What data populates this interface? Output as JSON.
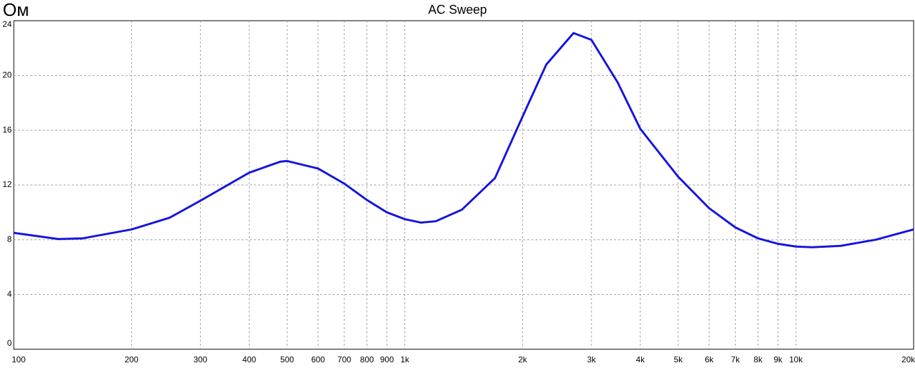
{
  "chart_data": {
    "type": "line",
    "title": "AC Sweep",
    "y_label": "Ом",
    "xscale": "log",
    "grid": true,
    "xlim": [
      100,
      20000
    ],
    "ylim": [
      0,
      24
    ],
    "xticks": [
      100,
      200,
      300,
      400,
      500,
      600,
      700,
      800,
      900,
      {
        "value": 1000,
        "label": "1k"
      },
      {
        "value": 2000,
        "label": "2k"
      },
      {
        "value": 3000,
        "label": "3k"
      },
      {
        "value": 4000,
        "label": "4k"
      },
      {
        "value": 5000,
        "label": "5k"
      },
      {
        "value": 6000,
        "label": "6k"
      },
      {
        "value": 7000,
        "label": "7k"
      },
      {
        "value": 8000,
        "label": "8k"
      },
      {
        "value": 9000,
        "label": "9k"
      },
      {
        "value": 10000,
        "label": "10k"
      },
      {
        "value": 20000,
        "label": "20k"
      }
    ],
    "yticks": [
      0,
      4,
      8,
      12,
      16,
      20,
      24
    ],
    "x": [
      100,
      130,
      150,
      200,
      250,
      300,
      400,
      480,
      500,
      600,
      700,
      800,
      900,
      1000,
      1100,
      1200,
      1400,
      1700,
      2000,
      2300,
      2700,
      3000,
      3500,
      4000,
      5000,
      6000,
      7000,
      8000,
      9000,
      10000,
      11000,
      13000,
      16000,
      20000
    ],
    "series": [
      {
        "color": "#1414e0",
        "values": [
          8.5,
          8.05,
          8.1,
          8.75,
          9.6,
          10.85,
          12.9,
          13.7,
          13.75,
          13.2,
          12.1,
          10.9,
          10.0,
          9.5,
          9.25,
          9.35,
          10.2,
          12.5,
          17.0,
          20.8,
          23.1,
          22.6,
          19.5,
          16.1,
          12.6,
          10.3,
          8.9,
          8.1,
          7.7,
          7.5,
          7.45,
          7.55,
          8.0,
          8.75
        ]
      }
    ]
  }
}
